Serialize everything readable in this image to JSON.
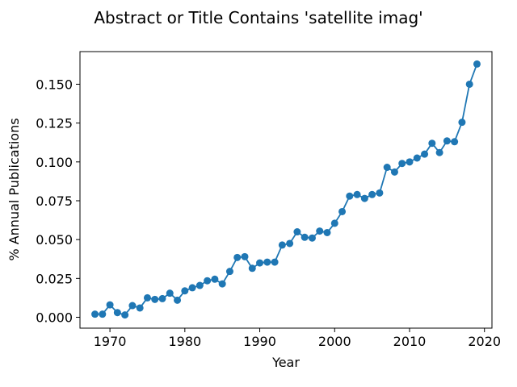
{
  "chart_data": {
    "type": "line",
    "title": "Abstract or Title Contains 'satellite imag'",
    "xlabel": "Year",
    "ylabel": "% Annual Publications",
    "xlim": [
      1966,
      2021
    ],
    "ylim": [
      -0.007,
      0.171
    ],
    "xticks": [
      1970,
      1980,
      1990,
      2000,
      2010,
      2020
    ],
    "yticks": [
      0.0,
      0.025,
      0.05,
      0.075,
      0.1,
      0.125,
      0.15
    ],
    "ytick_labels": [
      "0.000",
      "0.025",
      "0.050",
      "0.075",
      "0.100",
      "0.125",
      "0.150"
    ],
    "grid": false,
    "series": [
      {
        "color": "#1f77b4",
        "marker": "circle",
        "x": [
          1968,
          1969,
          1970,
          1971,
          1972,
          1973,
          1974,
          1975,
          1976,
          1977,
          1978,
          1979,
          1980,
          1981,
          1982,
          1983,
          1984,
          1985,
          1986,
          1987,
          1988,
          1989,
          1990,
          1991,
          1992,
          1993,
          1994,
          1995,
          1996,
          1997,
          1998,
          1999,
          2000,
          2001,
          2002,
          2003,
          2004,
          2005,
          2006,
          2007,
          2008,
          2009,
          2010,
          2011,
          2012,
          2013,
          2014,
          2015,
          2016,
          2017,
          2018,
          2019
        ],
        "y": [
          0.002,
          0.002,
          0.008,
          0.003,
          0.0015,
          0.0075,
          0.006,
          0.0125,
          0.0115,
          0.012,
          0.0155,
          0.011,
          0.017,
          0.019,
          0.0205,
          0.0235,
          0.0245,
          0.0215,
          0.0295,
          0.0385,
          0.039,
          0.0315,
          0.035,
          0.0355,
          0.0355,
          0.0465,
          0.0475,
          0.055,
          0.0515,
          0.051,
          0.0555,
          0.0545,
          0.0605,
          0.068,
          0.078,
          0.079,
          0.0765,
          0.079,
          0.08,
          0.0965,
          0.0935,
          0.099,
          0.1,
          0.1025,
          0.105,
          0.112,
          0.106,
          0.1135,
          0.113,
          0.1255,
          0.15,
          0.163
        ]
      }
    ]
  }
}
